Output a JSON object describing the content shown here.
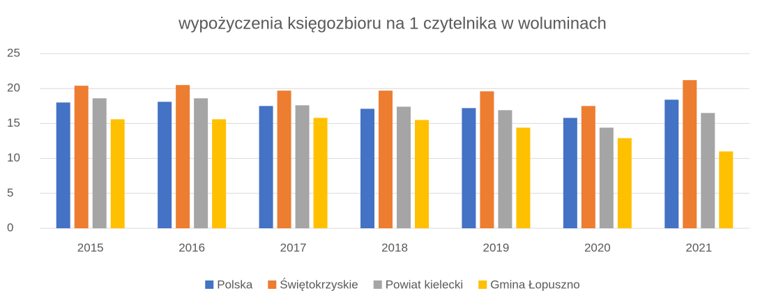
{
  "chart_data": {
    "type": "bar",
    "title": "wypożyczenia księgozbioru na 1 czytelnika w woluminach",
    "categories": [
      "2015",
      "2016",
      "2017",
      "2018",
      "2019",
      "2020",
      "2021"
    ],
    "series": [
      {
        "name": "Polska",
        "color": "#4472c4",
        "values": [
          18.0,
          18.1,
          17.5,
          17.1,
          17.2,
          15.8,
          18.4
        ]
      },
      {
        "name": "Świętokrzyskie",
        "color": "#ed7d31",
        "values": [
          20.4,
          20.5,
          19.7,
          19.7,
          19.6,
          17.5,
          21.2
        ]
      },
      {
        "name": "Powiat kielecki",
        "color": "#a5a5a5",
        "values": [
          18.6,
          18.6,
          17.6,
          17.4,
          16.9,
          14.4,
          16.5
        ]
      },
      {
        "name": "Gmina Łopuszno",
        "color": "#ffc000",
        "values": [
          15.6,
          15.6,
          15.8,
          15.5,
          14.4,
          12.9,
          11.0
        ]
      }
    ],
    "ylim": [
      0,
      25
    ],
    "yticks": [
      0,
      5,
      10,
      15,
      20,
      25
    ],
    "grid": true,
    "legend": "bottom"
  }
}
